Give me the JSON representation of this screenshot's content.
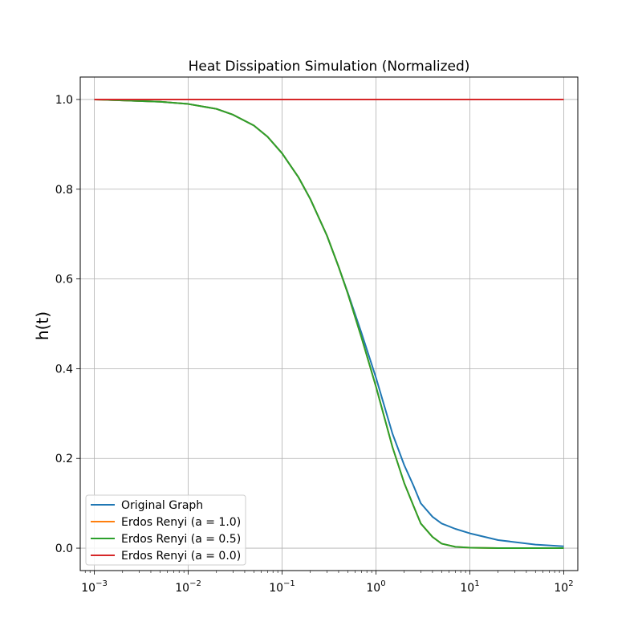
{
  "chart_data": {
    "type": "line",
    "title": "Heat Dissipation Simulation (Normalized)",
    "xlabel": "",
    "ylabel": "h(t)",
    "x_scale": "log",
    "xlim": [
      0.000708,
      141.2
    ],
    "ylim": [
      -0.05,
      1.05
    ],
    "grid": true,
    "legend_position": "lower-left",
    "x_ticks": [
      {
        "base": "10",
        "exp": "−3",
        "value": 0.001
      },
      {
        "base": "10",
        "exp": "−2",
        "value": 0.01
      },
      {
        "base": "10",
        "exp": "−1",
        "value": 0.1
      },
      {
        "base": "10",
        "exp": "0",
        "value": 1
      },
      {
        "base": "10",
        "exp": "1",
        "value": 10
      },
      {
        "base": "10",
        "exp": "2",
        "value": 100
      }
    ],
    "y_ticks": [
      {
        "label": "0.0",
        "value": 0.0
      },
      {
        "label": "0.2",
        "value": 0.2
      },
      {
        "label": "0.4",
        "value": 0.4
      },
      {
        "label": "0.6",
        "value": 0.6
      },
      {
        "label": "0.8",
        "value": 0.8
      },
      {
        "label": "1.0",
        "value": 1.0
      }
    ],
    "x": [
      0.001,
      0.002,
      0.005,
      0.01,
      0.02,
      0.03,
      0.05,
      0.07,
      0.1,
      0.15,
      0.2,
      0.3,
      0.4,
      0.5,
      0.7,
      1.0,
      1.5,
      2.0,
      2.5,
      3.0,
      4.0,
      5.0,
      7.0,
      10.0,
      20.0,
      50.0,
      100.0
    ],
    "series": [
      {
        "name": "Original Graph",
        "color": "#1f77b4",
        "values": [
          1.0,
          0.998,
          0.995,
          0.99,
          0.979,
          0.966,
          0.942,
          0.917,
          0.88,
          0.826,
          0.778,
          0.697,
          0.627,
          0.57,
          0.48,
          0.38,
          0.255,
          0.185,
          0.14,
          0.1,
          0.07,
          0.055,
          0.043,
          0.033,
          0.018,
          0.008,
          0.004
        ]
      },
      {
        "name": "Erdos Renyi (a = 1.0)",
        "color": "#ff7f0e",
        "values": [
          1.0,
          0.998,
          0.995,
          0.99,
          0.979,
          0.966,
          0.942,
          0.917,
          0.88,
          0.826,
          0.778,
          0.697,
          0.627,
          0.568,
          0.47,
          0.36,
          0.225,
          0.145,
          0.095,
          0.055,
          0.025,
          0.01,
          0.003,
          0.001,
          0.0,
          0.0,
          0.0
        ]
      },
      {
        "name": "Erdos Renyi (a = 0.5)",
        "color": "#2ca02c",
        "values": [
          1.0,
          0.998,
          0.995,
          0.99,
          0.979,
          0.966,
          0.942,
          0.917,
          0.88,
          0.826,
          0.778,
          0.697,
          0.627,
          0.568,
          0.47,
          0.36,
          0.225,
          0.145,
          0.095,
          0.055,
          0.025,
          0.01,
          0.003,
          0.001,
          0.0,
          0.0,
          0.0
        ]
      },
      {
        "name": "Erdos Renyi (a = 0.0)",
        "color": "#d62728",
        "values": [
          1.0,
          1.0,
          1.0,
          1.0,
          1.0,
          1.0,
          1.0,
          1.0,
          1.0,
          1.0,
          1.0,
          1.0,
          1.0,
          1.0,
          1.0,
          1.0,
          1.0,
          1.0,
          1.0,
          1.0,
          1.0,
          1.0,
          1.0,
          1.0,
          1.0,
          1.0,
          1.0
        ]
      }
    ]
  }
}
